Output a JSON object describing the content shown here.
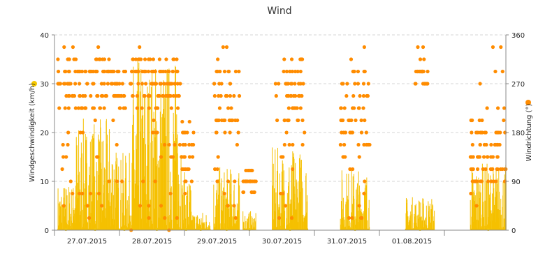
{
  "chart_data": {
    "type": "line",
    "title": "Wind",
    "x_categories": [
      "27.07.2015",
      "28.07.2015",
      "29.07.2015",
      "30.07.2015",
      "31.07.2015",
      "01.08.2015"
    ],
    "y_left": {
      "label": "Windgeschwindigkeit (km/h)",
      "lim": [
        0,
        40
      ],
      "ticks": [
        0,
        10,
        20,
        30,
        40
      ]
    },
    "y_right": {
      "label": "Windrichtung (°)",
      "lim": [
        0,
        360
      ],
      "ticks": [
        0,
        90,
        180,
        270,
        360
      ]
    },
    "grid": true,
    "colors": {
      "speed": "#f5c000",
      "speed_marker": "#f5c800",
      "direction": "#ff8c00",
      "grid": "#d6d6d6"
    },
    "series": [
      {
        "axis": "left",
        "style": "bars",
        "blocks": [
          {
            "start": 26.05,
            "end": 26.3,
            "peak": 10
          },
          {
            "start": 26.3,
            "end": 26.95,
            "peak": 23
          },
          {
            "start": 26.95,
            "end": 27.2,
            "peak": 16
          },
          {
            "start": 27.2,
            "end": 27.95,
            "peak": 36
          },
          {
            "start": 27.95,
            "end": 28.1,
            "peak": 12
          },
          {
            "start": 28.1,
            "end": 28.4,
            "peak": 4
          },
          {
            "start": 28.45,
            "end": 28.85,
            "peak": 13
          },
          {
            "start": 28.9,
            "end": 29.1,
            "peak": 4
          },
          {
            "start": 29.35,
            "end": 29.9,
            "peak": 17
          },
          {
            "start": 30.4,
            "end": 30.85,
            "peak": 13
          },
          {
            "start": 31.4,
            "end": 31.85,
            "peak": 7
          },
          {
            "start": 32.4,
            "end": 32.95,
            "peak": 14
          }
        ]
      },
      {
        "axis": "right",
        "style": "points",
        "blocks": [
          {
            "start": 26.05,
            "end": 26.9,
            "min": 0,
            "max": 340,
            "band": [
              225,
              315
            ]
          },
          {
            "start": 26.9,
            "end": 27.1,
            "min": 0,
            "max": 300,
            "band": [
              225,
              300
            ]
          },
          {
            "start": 27.15,
            "end": 27.95,
            "min": 0,
            "max": 340,
            "band": [
              225,
              315
            ]
          },
          {
            "start": 27.95,
            "end": 28.15,
            "min": 0,
            "max": 200,
            "band": [
              90,
              200
            ]
          },
          {
            "start": 28.45,
            "end": 28.85,
            "min": 0,
            "max": 340,
            "band": [
              180,
              315
            ]
          },
          {
            "start": 28.9,
            "end": 29.1,
            "min": 70,
            "max": 110,
            "band": [
              70,
              110
            ]
          },
          {
            "start": 29.4,
            "end": 29.85,
            "min": 0,
            "max": 330,
            "band": [
              200,
              315
            ]
          },
          {
            "start": 30.4,
            "end": 30.85,
            "min": 0,
            "max": 340,
            "band": [
              135,
              300
            ]
          },
          {
            "start": 31.55,
            "end": 31.75,
            "min": 270,
            "max": 340,
            "band": [
              270,
              300
            ]
          },
          {
            "start": 32.4,
            "end": 32.95,
            "min": 0,
            "max": 340,
            "band": [
              90,
              200
            ]
          }
        ]
      }
    ]
  }
}
